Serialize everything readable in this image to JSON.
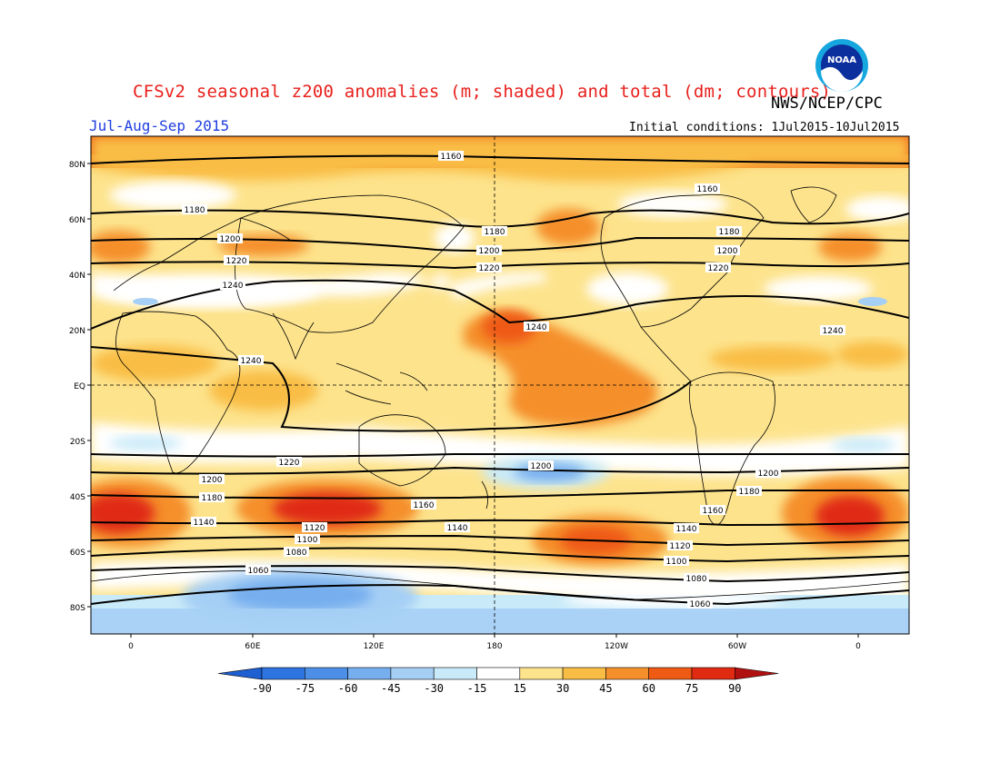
{
  "title": "CFSv2 seasonal z200 anomalies (m; shaded) and total (dm; contours)",
  "credit": "NWS/NCEP/CPC",
  "period": "Jul-Aug-Sep 2015",
  "initial_conditions": "Initial conditions: 1Jul2015-10Jul2015",
  "logo_text": "NOAA",
  "lat_labels": [
    "80N",
    "60N",
    "40N",
    "20N",
    "EQ",
    "20S",
    "40S",
    "60S",
    "80S"
  ],
  "lon_labels": [
    "0",
    "60E",
    "120E",
    "180",
    "120W",
    "60W",
    "0"
  ],
  "colorbar": {
    "tick_labels": [
      "-90",
      "-75",
      "-60",
      "-45",
      "-30",
      "-15",
      "15",
      "30",
      "45",
      "60",
      "75",
      "90"
    ],
    "colors": [
      "#1e5fd2",
      "#2e74e0",
      "#4d8fe6",
      "#76aeee",
      "#a6cff5",
      "#c9eaf8",
      "#ffffff",
      "#fde38c",
      "#f9bd45",
      "#f58f2b",
      "#ef5a14",
      "#e02a12",
      "#b01010"
    ]
  },
  "contour_labels": [
    "1160",
    "1160",
    "1180",
    "1180",
    "1180",
    "1200",
    "1200",
    "1200",
    "1200",
    "1220",
    "1220",
    "1220",
    "1240",
    "1240",
    "1240",
    "1240",
    "1220",
    "1200",
    "1200",
    "1180",
    "1180",
    "1160",
    "1160",
    "1140",
    "1140",
    "1140",
    "1120",
    "1120",
    "1100",
    "1100",
    "1080",
    "1080",
    "1060",
    "1060"
  ]
}
